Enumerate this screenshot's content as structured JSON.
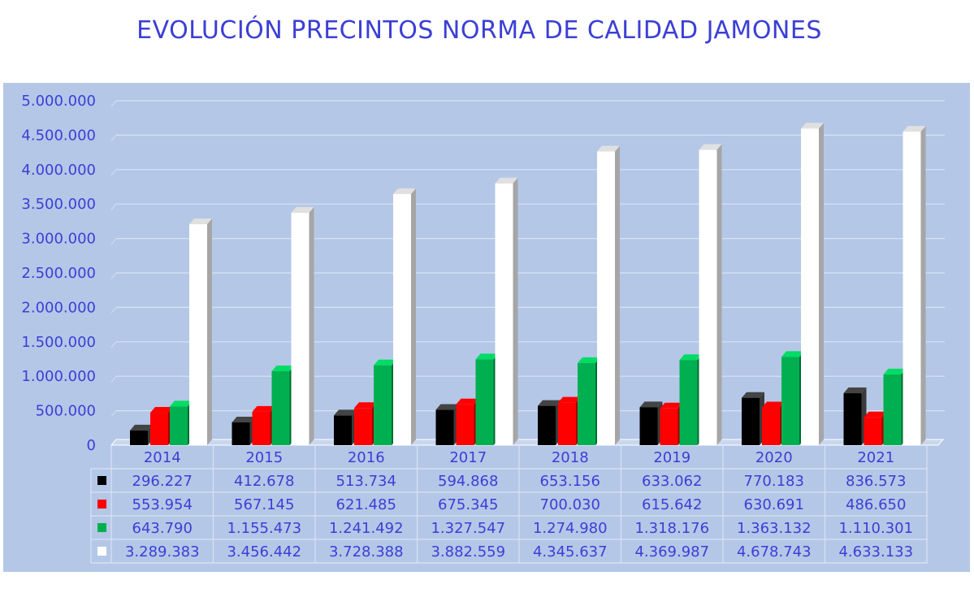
{
  "chart_data": {
    "type": "bar",
    "title": "EVOLUCIÓN PRECINTOS NORMA DE CALIDAD JAMONES",
    "xlabel": "",
    "ylabel": "",
    "ylim": [
      0,
      5000000
    ],
    "y_ticks": [
      0,
      500000,
      1000000,
      1500000,
      2000000,
      2500000,
      3000000,
      3500000,
      4000000,
      4500000,
      5000000
    ],
    "y_tick_labels": [
      "0",
      "500.000",
      "1.000.000",
      "1.500.000",
      "2.000.000",
      "2.500.000",
      "3.000.000",
      "3.500.000",
      "4.000.000",
      "4.500.000",
      "5.000.000"
    ],
    "grid": true,
    "legend": "data-table",
    "categories": [
      "2014",
      "2015",
      "2016",
      "2017",
      "2018",
      "2019",
      "2020",
      "2021"
    ],
    "series": [
      {
        "color": "#000000",
        "values": [
          296227,
          412678,
          513734,
          594868,
          653156,
          633062,
          770183,
          836573
        ],
        "labels": [
          "296.227",
          "412.678",
          "513.734",
          "594.868",
          "653.156",
          "633.062",
          "770.183",
          "836.573"
        ]
      },
      {
        "color": "#ff0000",
        "values": [
          553954,
          567145,
          621485,
          675345,
          700030,
          615642,
          630691,
          486650
        ],
        "labels": [
          "553.954",
          "567.145",
          "621.485",
          "675.345",
          "700.030",
          "615.642",
          "630.691",
          "486.650"
        ]
      },
      {
        "color": "#00b050",
        "values": [
          643790,
          1155473,
          1241492,
          1327547,
          1274980,
          1318176,
          1363132,
          1110301
        ],
        "labels": [
          "643.790",
          "1.155.473",
          "1.241.492",
          "1.327.547",
          "1.274.980",
          "1.318.176",
          "1.363.132",
          "1.110.301"
        ]
      },
      {
        "color": "#ffffff",
        "values": [
          3289383,
          3456442,
          3728388,
          3882559,
          4345637,
          4369987,
          4678743,
          4633133
        ],
        "labels": [
          "3.289.383",
          "3.456.442",
          "3.728.388",
          "3.882.559",
          "4.345.637",
          "4.369.987",
          "4.678.743",
          "4.633.133"
        ]
      }
    ],
    "text_color": "#3b3fd6",
    "panel_color": "#b4c7e7"
  }
}
